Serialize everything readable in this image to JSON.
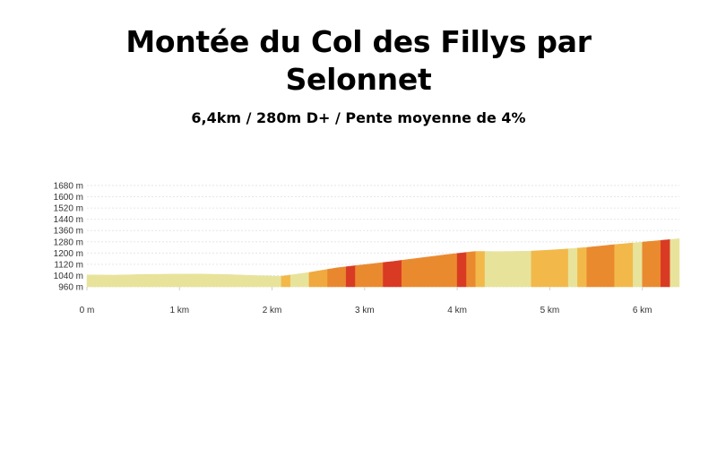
{
  "title_line1": "Montée du Col des Fillys par",
  "title_line2": "Selonnet",
  "subtitle": "6,4km / 280m D+ / Pente moyenne de 4%",
  "chart_data": {
    "type": "area",
    "xlim": [
      0,
      6.4
    ],
    "ylim": [
      960,
      1680
    ],
    "y_ticks": [
      960,
      1040,
      1120,
      1200,
      1280,
      1360,
      1440,
      1520,
      1600,
      1680
    ],
    "y_tick_labels": [
      "960 m",
      "1040 m",
      "1120 m",
      "1200 m",
      "1280 m",
      "1360 m",
      "1440 m",
      "1520 m",
      "1600 m",
      "1680 m"
    ],
    "x_ticks": [
      0,
      1,
      2,
      3,
      4,
      5,
      6
    ],
    "x_tick_labels": [
      "0 m",
      "1 km",
      "2 km",
      "3 km",
      "4 km",
      "5 km",
      "6 km"
    ],
    "grid": true,
    "profile_km": [
      0,
      0.3,
      0.6,
      0.9,
      1.2,
      1.5,
      1.8,
      2.1,
      2.4,
      2.7,
      3.0,
      3.3,
      3.6,
      3.9,
      4.2,
      4.5,
      4.8,
      5.1,
      5.4,
      5.7,
      6.0,
      6.4
    ],
    "profile_elev_m": [
      1045,
      1043,
      1048,
      1050,
      1051,
      1048,
      1040,
      1035,
      1062,
      1095,
      1118,
      1140,
      1165,
      1190,
      1212,
      1211,
      1214,
      1225,
      1240,
      1260,
      1278,
      1302
    ],
    "segment_starts_km": [
      0,
      2.1,
      2.2,
      2.4,
      2.6,
      2.8,
      2.9,
      3.2,
      3.4,
      4.0,
      4.1,
      4.2,
      4.3,
      4.8,
      5.2,
      5.3,
      5.4,
      5.7,
      5.9,
      6.0,
      6.2,
      6.3
    ],
    "segment_colors": [
      "#e8e39b",
      "#f2b94a",
      "#e8e39b",
      "#f0a93f",
      "#e9872f",
      "#d93a24",
      "#ea8a2f",
      "#d93a24",
      "#ea8a2f",
      "#d93a24",
      "#ea8a2f",
      "#f2b94a",
      "#e8e39b",
      "#f2b94a",
      "#e8e39b",
      "#f2b94a",
      "#ea8a2f",
      "#f2b94a",
      "#e8e39b",
      "#ea8a2f",
      "#d93a24",
      "#e8e39b"
    ]
  }
}
